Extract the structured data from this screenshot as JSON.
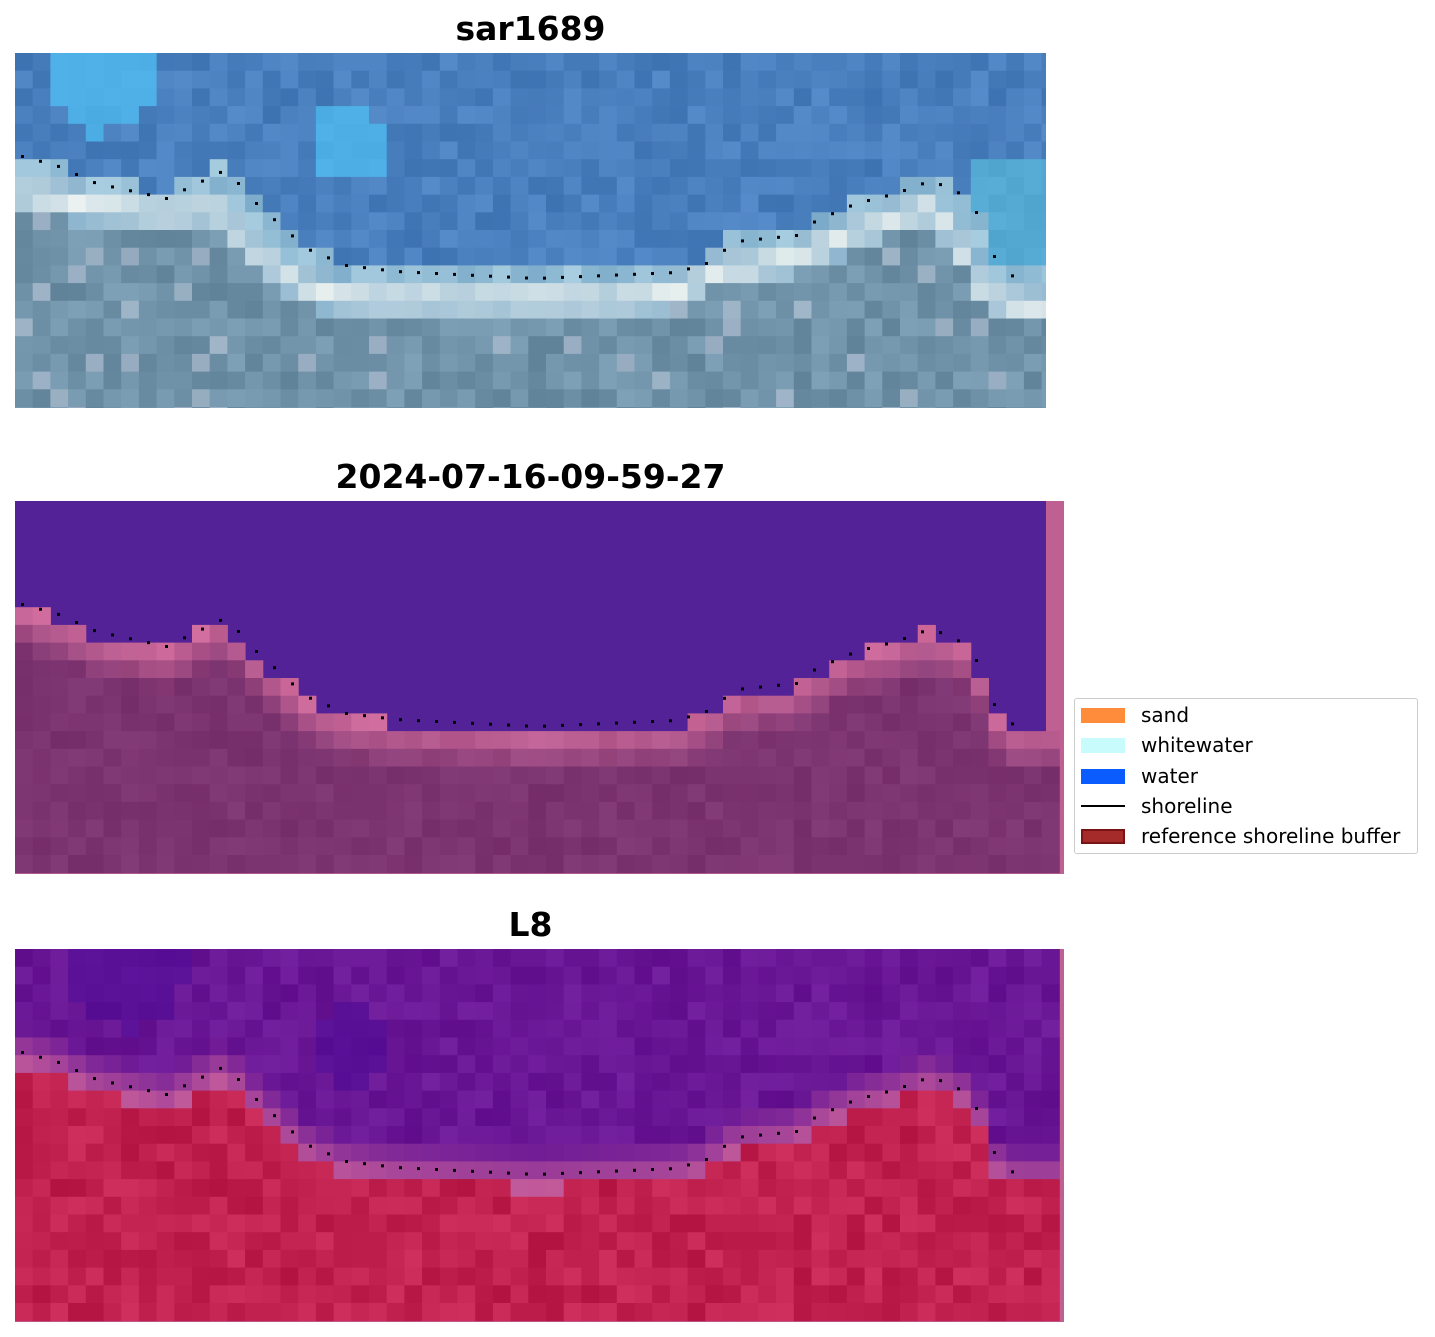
{
  "panels": [
    {
      "id": "rgb",
      "title": "sar1689"
    },
    {
      "id": "classification",
      "title": "2024-07-16-09-59-27"
    },
    {
      "id": "index",
      "title": "L8"
    }
  ],
  "legend": {
    "items": [
      {
        "label": "sand",
        "color": "#ff8c3a",
        "kind": "patch"
      },
      {
        "label": "whitewater",
        "color": "#c8fcfc",
        "kind": "patch"
      },
      {
        "label": "water",
        "color": "#0a5cff",
        "kind": "patch"
      },
      {
        "label": "shoreline",
        "color": "#000000",
        "kind": "line"
      },
      {
        "label": "reference shoreline buffer",
        "color": "#a52a2a",
        "kind": "patch"
      }
    ]
  },
  "colors": {
    "rgb_water": "#4a7fbe",
    "rgb_land": "#6f92a8",
    "class_water": "#532296",
    "class_land": "#7c3470",
    "class_buffer": "#bf6093",
    "index_water": "#6a1796",
    "index_land": "#c0214f",
    "index_buffer": "#bf6093"
  }
}
